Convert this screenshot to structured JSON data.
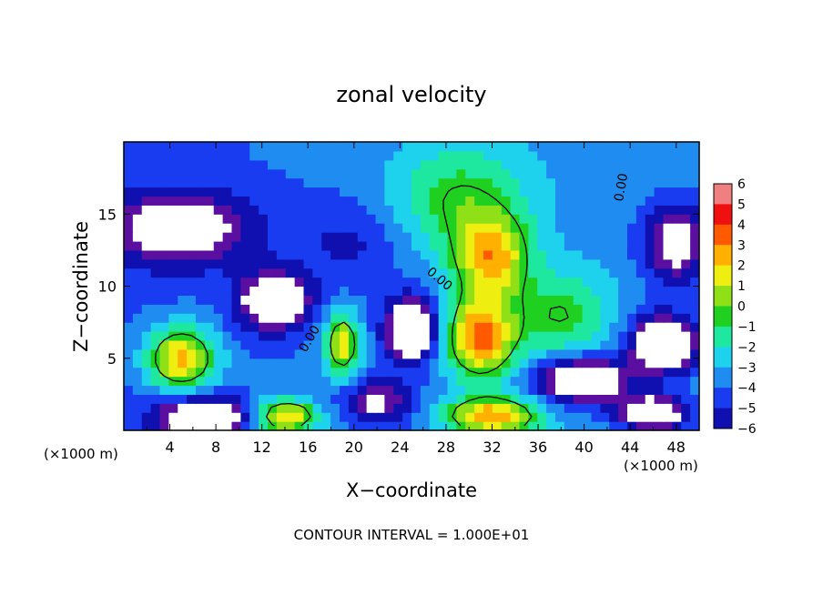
{
  "chart_data": {
    "type": "heatmap",
    "title": "zonal velocity",
    "xlabel": "X−coordinate",
    "ylabel": "Z−coordinate",
    "x_unit_left": "(×1000 m)",
    "x_unit_right": "(×1000 m)",
    "footer": "CONTOUR INTERVAL = 1.000E+01",
    "xlim": [
      0,
      50
    ],
    "ylim": [
      0,
      20
    ],
    "xticks": [
      4,
      8,
      12,
      16,
      20,
      24,
      28,
      32,
      36,
      40,
      44,
      48
    ],
    "yticks": [
      5,
      10,
      15
    ],
    "contour_label": "0.00",
    "colorbar": {
      "range": [
        -6,
        6
      ],
      "ticks": [
        "6",
        "5",
        "4",
        "3",
        "2",
        "1",
        "0",
        "−1",
        "−2",
        "−3",
        "−4",
        "−5",
        "−6"
      ]
    },
    "features": [
      {
        "kind": "blob",
        "x": 32,
        "z": 12,
        "value": 5.5,
        "sx": 3.2,
        "sz": 2.8
      },
      {
        "kind": "blob",
        "x": 29,
        "z": 16,
        "value": 3.2,
        "sx": 6,
        "sz": 4
      },
      {
        "kind": "blob",
        "x": 38,
        "z": 8,
        "value": 3.0,
        "sx": 4,
        "sz": 3
      },
      {
        "kind": "blob",
        "x": 5,
        "z": 14,
        "value": -4.5,
        "sx": 6,
        "sz": 2.5
      },
      {
        "kind": "blob",
        "x": 48,
        "z": 13,
        "value": -4.5,
        "sx": 3,
        "sz": 3
      },
      {
        "kind": "blob",
        "x": 20,
        "z": 13,
        "value": -1.5,
        "sx": 5,
        "sz": 3
      },
      {
        "kind": "blob",
        "x": 13,
        "z": 9,
        "value": -5.5,
        "sx": 3,
        "sz": 2
      },
      {
        "kind": "blob",
        "x": 5,
        "z": 5,
        "value": 6.5,
        "sx": 3,
        "sz": 2.2
      },
      {
        "kind": "blob",
        "x": 19,
        "z": 6,
        "value": 5.5,
        "sx": 1.5,
        "sz": 2.2
      },
      {
        "kind": "blob",
        "x": 25,
        "z": 7,
        "value": -6.5,
        "sx": 2.2,
        "sz": 2.2
      },
      {
        "kind": "blob",
        "x": 31,
        "z": 6.5,
        "value": 7,
        "sx": 3,
        "sz": 2.8
      },
      {
        "kind": "blob",
        "x": 40,
        "z": 3.5,
        "value": -6,
        "sx": 4,
        "sz": 1.6
      },
      {
        "kind": "blob",
        "x": 47,
        "z": 6,
        "value": -6.5,
        "sx": 3,
        "sz": 2
      },
      {
        "kind": "blob",
        "x": 32,
        "z": 1,
        "value": 6.5,
        "sx": 4,
        "sz": 1.3
      },
      {
        "kind": "blob",
        "x": 7,
        "z": 1,
        "value": -6,
        "sx": 4,
        "sz": 1.3
      },
      {
        "kind": "blob",
        "x": 14,
        "z": 1,
        "value": 6,
        "sx": 3,
        "sz": 1.2
      },
      {
        "kind": "blob",
        "x": 46,
        "z": 1.2,
        "value": -6,
        "sx": 3,
        "sz": 1.2
      },
      {
        "kind": "blob",
        "x": 22,
        "z": 2,
        "value": -3.5,
        "sx": 3,
        "sz": 1.5
      }
    ]
  }
}
